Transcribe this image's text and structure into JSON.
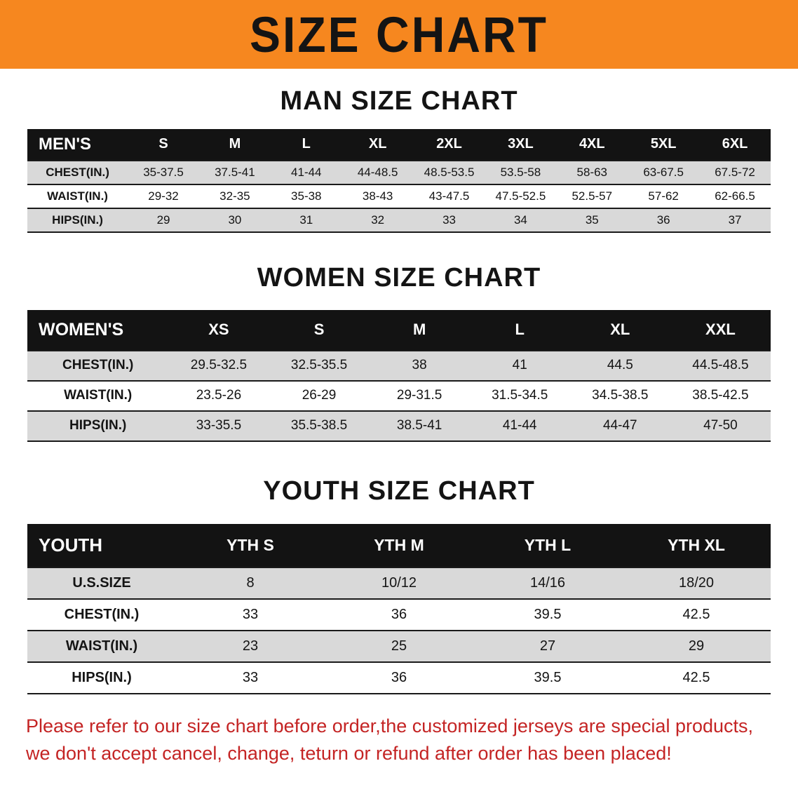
{
  "banner": {
    "title": "SIZE CHART"
  },
  "colors": {
    "banner_bg": "#f6871f",
    "header_bg": "#131313",
    "row_alt_bg": "#d9d9d9",
    "footer_text": "#c42424"
  },
  "sections": [
    {
      "id": "men",
      "heading": "MAN SIZE CHART",
      "table": {
        "header": [
          "MEN'S",
          "S",
          "M",
          "L",
          "XL",
          "2XL",
          "3XL",
          "4XL",
          "5XL",
          "6XL"
        ],
        "rows": [
          [
            "CHEST(IN.)",
            "35-37.5",
            "37.5-41",
            "41-44",
            "44-48.5",
            "48.5-53.5",
            "53.5-58",
            "58-63",
            "63-67.5",
            "67.5-72"
          ],
          [
            "WAIST(IN.)",
            "29-32",
            "32-35",
            "35-38",
            "38-43",
            "43-47.5",
            "47.5-52.5",
            "52.5-57",
            "57-62",
            "62-66.5"
          ],
          [
            "HIPS(IN.)",
            "29",
            "30",
            "31",
            "32",
            "33",
            "34",
            "35",
            "36",
            "37"
          ]
        ]
      }
    },
    {
      "id": "women",
      "heading": "WOMEN SIZE CHART",
      "table": {
        "header": [
          "WOMEN'S",
          "XS",
          "S",
          "M",
          "L",
          "XL",
          "XXL"
        ],
        "rows": [
          [
            "CHEST(IN.)",
            "29.5-32.5",
            "32.5-35.5",
            "38",
            "41",
            "44.5",
            "44.5-48.5"
          ],
          [
            "WAIST(IN.)",
            "23.5-26",
            "26-29",
            "29-31.5",
            "31.5-34.5",
            "34.5-38.5",
            "38.5-42.5"
          ],
          [
            "HIPS(IN.)",
            "33-35.5",
            "35.5-38.5",
            "38.5-41",
            "41-44",
            "44-47",
            "47-50"
          ]
        ]
      }
    },
    {
      "id": "youth",
      "heading": "YOUTH SIZE CHART",
      "table": {
        "header": [
          "YOUTH",
          "YTH S",
          "YTH M",
          "YTH L",
          "YTH XL"
        ],
        "rows": [
          [
            "U.S.SIZE",
            "8",
            "10/12",
            "14/16",
            "18/20"
          ],
          [
            "CHEST(IN.)",
            "33",
            "36",
            "39.5",
            "42.5"
          ],
          [
            "WAIST(IN.)",
            "23",
            "25",
            "27",
            "29"
          ],
          [
            "HIPS(IN.)",
            "33",
            "36",
            "39.5",
            "42.5"
          ]
        ]
      }
    }
  ],
  "footer": {
    "line1": "Please refer to our size chart before order,the customized jerseys are special products,",
    "line2": "we don't accept cancel, change, teturn or refund after order has been placed!"
  }
}
